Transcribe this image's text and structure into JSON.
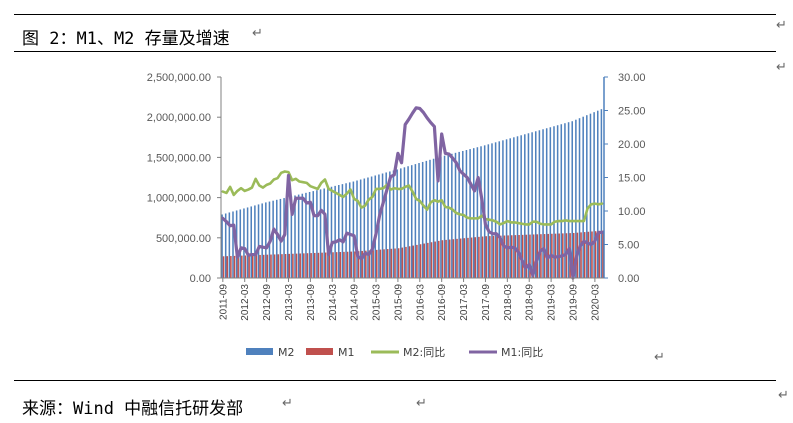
{
  "header": {
    "title": "图 2：M1、M2 存量及增速"
  },
  "footer": {
    "source": "来源：Wind 中融信托研发部"
  },
  "paragraph_mark": "↵",
  "chart_data": {
    "type": "bar+line",
    "title": "",
    "xlabel": "",
    "ylabel": "",
    "y_left": {
      "range": [
        0,
        2500000
      ],
      "ticks": [
        "0.00",
        "500,000.00",
        "1,000,000.00",
        "1,500,000.00",
        "2,000,000.00",
        "2,500,000.00"
      ]
    },
    "y_right": {
      "range": [
        0,
        30
      ],
      "ticks": [
        "0.00",
        "5.00",
        "10.00",
        "15.00",
        "20.00",
        "25.00",
        "30.00"
      ]
    },
    "x_ticks": [
      "2011-09",
      "2012-03",
      "2012-09",
      "2013-03",
      "2013-09",
      "2014-03",
      "2014-09",
      "2015-03",
      "2015-09",
      "2016-03",
      "2016-09",
      "2017-03",
      "2017-09",
      "2018-03",
      "2018-09",
      "2019-03",
      "2019-09",
      "2020-03"
    ],
    "start_month": "2011-09",
    "months": 105,
    "legend": {
      "placement": "bottom",
      "entries": [
        "M2",
        "M1",
        "M2:同比",
        "M1:同比"
      ]
    },
    "colors": {
      "M2": "#4f81bd",
      "M1": "#c0504d",
      "M2:同比": "#9bbb59",
      "M1:同比": "#8064a2",
      "axis_right": "#4f81bd"
    },
    "series": [
      {
        "name": "M2",
        "kind": "bar",
        "axis": "left",
        "anchors": [
          [
            "2011-09",
            790000
          ],
          [
            "2012-09",
            940000
          ],
          [
            "2013-09",
            1070000
          ],
          [
            "2014-09",
            1200000
          ],
          [
            "2015-09",
            1350000
          ],
          [
            "2016-09",
            1510000
          ],
          [
            "2017-09",
            1650000
          ],
          [
            "2018-09",
            1800000
          ],
          [
            "2019-09",
            1950000
          ],
          [
            "2020-05",
            2100000
          ]
        ]
      },
      {
        "name": "M1",
        "kind": "bar",
        "axis": "left",
        "anchors": [
          [
            "2011-09",
            270000
          ],
          [
            "2012-09",
            290000
          ],
          [
            "2013-09",
            310000
          ],
          [
            "2014-09",
            330000
          ],
          [
            "2015-09",
            370000
          ],
          [
            "2016-09",
            470000
          ],
          [
            "2017-09",
            520000
          ],
          [
            "2018-09",
            540000
          ],
          [
            "2019-09",
            560000
          ],
          [
            "2020-05",
            590000
          ]
        ]
      },
      {
        "name": "M2:同比",
        "kind": "line",
        "axis": "right",
        "values": [
          12.9,
          12.7,
          13.6,
          12.4,
          13.0,
          13.4,
          13.0,
          13.2,
          13.5,
          14.8,
          13.8,
          13.5,
          13.9,
          14.1,
          14.7,
          14.9,
          15.7,
          15.9,
          15.8,
          14.6,
          14.8,
          14.4,
          14.3,
          14.2,
          13.7,
          13.5,
          13.3,
          14.2,
          14.7,
          13.3,
          13.0,
          12.7,
          12.4,
          12.1,
          12.6,
          13.2,
          11.8,
          11.5,
          10.5,
          10.8,
          11.7,
          12.1,
          13.3,
          13.3,
          13.4,
          13.9,
          13.2,
          13.4,
          13.3,
          13.3,
          13.6,
          13.8,
          12.9,
          11.8,
          11.5,
          10.8,
          10.2,
          11.3,
          11.6,
          11.4,
          11.6,
          10.6,
          10.5,
          10.2,
          9.7,
          9.5,
          9.4,
          9.0,
          8.9,
          8.9,
          8.9,
          9.3,
          8.8,
          8.7,
          8.6,
          8.4,
          8.0,
          8.2,
          8.5,
          8.3,
          8.3,
          8.2,
          8.1,
          8.0,
          8.0,
          8.4,
          8.4,
          8.1,
          8.0,
          8.0,
          8.0,
          8.4,
          8.5,
          8.5,
          8.6,
          8.5,
          8.5,
          8.5,
          8.5,
          8.5,
          10.4,
          11.0,
          11.1,
          11.0,
          11.1
        ]
      },
      {
        "name": "M1:同比",
        "kind": "line",
        "axis": "right",
        "values": [
          8.9,
          8.4,
          7.8,
          7.9,
          3.1,
          4.5,
          4.4,
          3.4,
          3.5,
          3.5,
          4.7,
          4.6,
          4.5,
          5.5,
          7.3,
          6.5,
          5.5,
          6.5,
          15.3,
          9.5,
          11.9,
          11.9,
          11.9,
          11.2,
          11.3,
          9.3,
          9.3,
          10.1,
          9.5,
          3.5,
          5.3,
          5.4,
          5.7,
          5.4,
          6.7,
          6.5,
          6.3,
          3.2,
          2.9,
          3.7,
          3.5,
          4.3,
          6.6,
          9.4,
          11.3,
          13.2,
          15.1,
          15.4,
          18.6,
          17.2,
          22.9,
          23.7,
          24.6,
          25.4,
          25.3,
          24.7,
          23.9,
          23.2,
          22.6,
          14.5,
          21.5,
          18.6,
          18.5,
          17.9,
          17.2,
          16.0,
          15.5,
          15.0,
          14.0,
          13.0,
          15.0,
          11.8,
          8.0,
          6.9,
          6.6,
          6.6,
          6.0,
          4.8,
          4.5,
          4.6,
          4.5,
          3.9,
          2.7,
          1.5,
          2.0,
          0.4,
          2.6,
          4.0,
          4.4,
          3.0,
          3.4,
          3.1,
          3.2,
          3.3,
          3.5,
          4.4,
          0.0,
          3.3,
          4.8,
          5.5,
          5.2,
          5.0,
          5.5,
          6.8,
          6.8
        ]
      }
    ]
  }
}
